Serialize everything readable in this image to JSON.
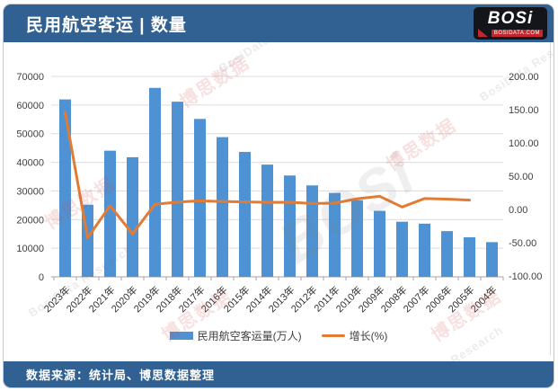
{
  "header": {
    "title": "民用航空客运 | 数量",
    "logo": {
      "brand": "BOSi",
      "domain": "BOSIDATA.COM"
    }
  },
  "footer": {
    "source": "数据来源：统计局、博思数据整理"
  },
  "watermarks": {
    "cjk": "博思数据",
    "latin": "BosiData Research",
    "brand": "BOSi"
  },
  "chart_data": {
    "type": "bar+line",
    "title": "民用航空客运 | 数量",
    "categories": [
      "2023年",
      "2022年",
      "2021年",
      "2020年",
      "2019年",
      "2018年",
      "2017年",
      "2016年",
      "2015年",
      "2014年",
      "2013年",
      "2012年",
      "2011年",
      "2010年",
      "2009年",
      "2008年",
      "2007年",
      "2006年",
      "2005年",
      "2004年"
    ],
    "series": [
      {
        "name": "民用航空客运量(万人)",
        "type": "bar",
        "axis": "left",
        "color": "#4f92d3",
        "values": [
          61958,
          25171,
          44056,
          41778,
          65993,
          61174,
          55156,
          48796,
          43618,
          39195,
          35397,
          31936,
          29317,
          26769,
          23052,
          19251,
          18576,
          15968,
          13827,
          12123
        ]
      },
      {
        "name": "增长(%)",
        "type": "line",
        "axis": "right",
        "color": "#e27b35",
        "values": [
          146.1,
          -42.9,
          5.5,
          -36.7,
          7.9,
          10.9,
          13.0,
          11.9,
          11.3,
          10.7,
          10.8,
          8.9,
          9.5,
          16.1,
          19.7,
          3.6,
          16.3,
          15.5,
          14.1,
          null
        ]
      }
    ],
    "left_axis": {
      "min": 0,
      "max": 70000,
      "step": 10000
    },
    "right_axis": {
      "min": -100,
      "max": 200,
      "step": 50,
      "decimals": 2
    },
    "grid": true,
    "legend_position": "bottom"
  }
}
